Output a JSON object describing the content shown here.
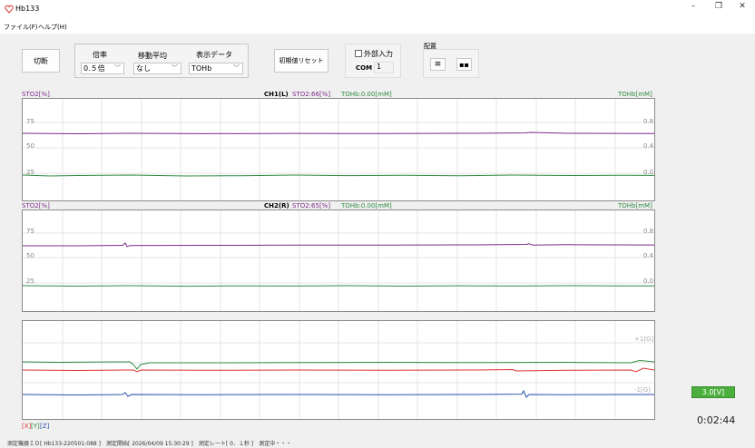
{
  "window": {
    "title": "Hb133",
    "minimize": "–",
    "restore": "❐",
    "close": "✕"
  },
  "menu": {
    "file": "ファイル(F)",
    "help": "ヘルプ(H)"
  },
  "toolbar": {
    "disconnect_label": "切断",
    "magnification_label": "倍率",
    "magnification_value": "0.５倍",
    "moving_avg_label": "移動平均",
    "moving_avg_value": "なし",
    "display_data_label": "表示データ",
    "display_data_value": "TOHb",
    "reset_label": "初期値リセット",
    "external_input_label": "外部入力",
    "com_label": "COM",
    "com_value": "1",
    "layout_label": "配置"
  },
  "channels": [
    {
      "left_label": "STO2[%]",
      "title": "CH1(L)",
      "sto2_text": "STO2:66[%]",
      "tohb_text": "TOHb:0.00[mM]",
      "right_label": "TOHb[mM]",
      "ticks_left": [
        "75",
        "50",
        "25"
      ],
      "ticks_right": [
        "0.8",
        "0.4",
        "0.0"
      ]
    },
    {
      "left_label": "STO2[%]",
      "title": "CH2(R)",
      "sto2_text": "STO2:65[%]",
      "tohb_text": "TOHb:0.00[mM]",
      "right_label": "TOHb[mM]",
      "ticks_left": [
        "75",
        "50",
        "25"
      ],
      "ticks_right": [
        "0.8",
        "0.4",
        "0.0"
      ]
    }
  ],
  "accel": {
    "top_label": "+1[G]",
    "bottom_label": "-1[G]",
    "axes_label_x": "[X]",
    "axes_label_y": "[Y]",
    "axes_label_z": "[Z]"
  },
  "battery": "3.0[V]",
  "elapsed": "0:02:44",
  "status": "測定機器ＩＤ[ Hb133-220501-088 ]　測定開始[ 2026/04/09 15:30:29 ]　測定レート[ 0．１秒 ]　測定中・・・",
  "colors": {
    "sto2": "#7b2a8a",
    "tohb": "#2d8a3e",
    "x": "#d33",
    "y": "#2d8a3e",
    "z": "#2a4fb0",
    "accent_green": "#4caf3e"
  }
}
